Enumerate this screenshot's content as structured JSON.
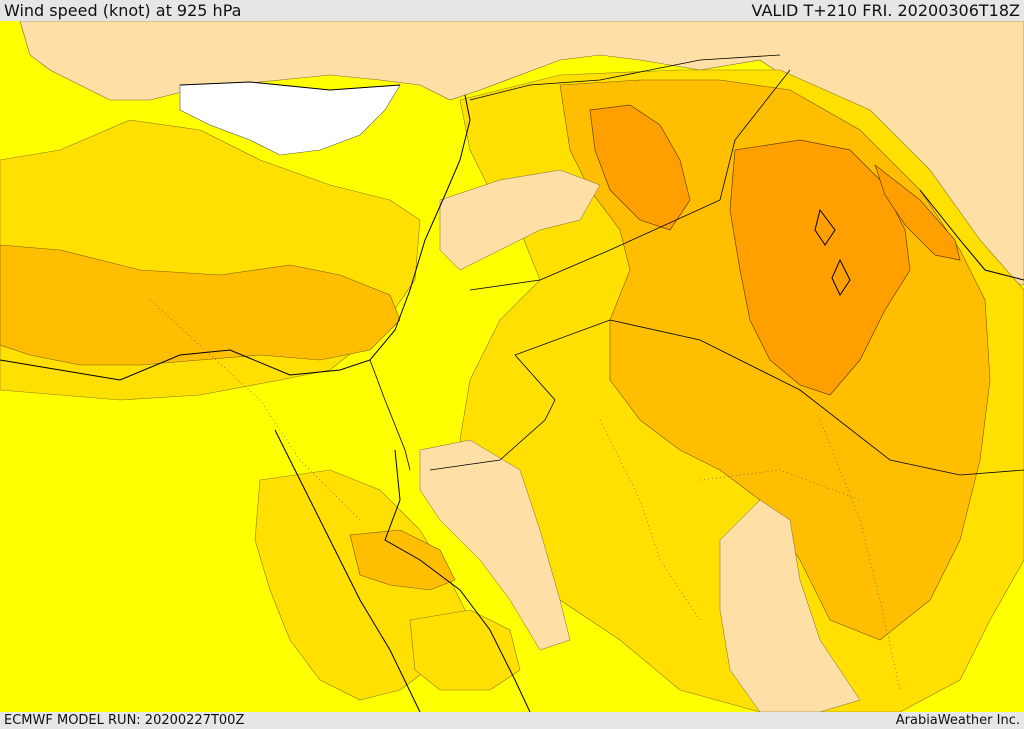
{
  "header": {
    "title": "Wind speed (knot) at 925 hPa",
    "valid_time": "VALID T+210 FRI. 20200306T18Z"
  },
  "footer": {
    "model_run": "ECMWF MODEL RUN: 20200227T00Z",
    "credit": "ArabiaWeather Inc."
  },
  "map": {
    "variable": "wind speed",
    "level_hpa": 925,
    "units": "knot",
    "colors": {
      "calm": "#ffffff",
      "light": "#fedfa6",
      "moderate": "#ffff00",
      "fresh": "#ffe000",
      "strong": "#ffbf00",
      "very_strong": "#ffa000",
      "coastline": "#000000",
      "country_border": "#000000"
    }
  }
}
